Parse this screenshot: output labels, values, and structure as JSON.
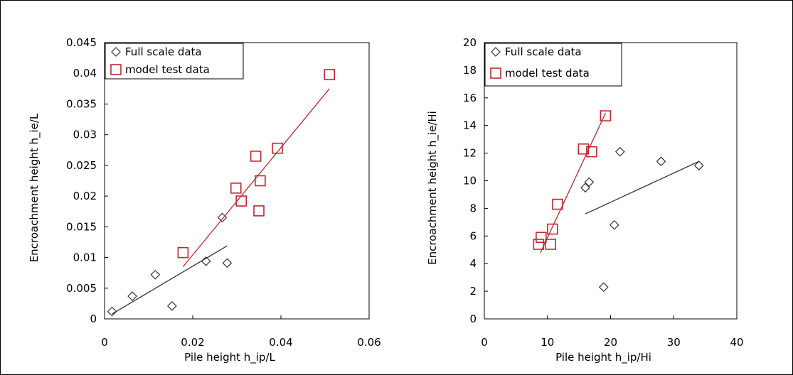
{
  "chart_data": [
    {
      "type": "scatter",
      "xlabel": "Pile height h_ip/L",
      "ylabel": "Encroachment height h_ie/L",
      "xlim": [
        0,
        0.06
      ],
      "ylim": [
        0,
        0.045
      ],
      "xticks": [
        "0",
        "0.02",
        "0.04",
        "0.06"
      ],
      "yticks": [
        "0",
        "0.005",
        "0.01",
        "0.015",
        "0.02",
        "0.025",
        "0.03",
        "0.035",
        "0.04",
        "0.045"
      ],
      "legend_position": "top-left",
      "series": [
        {
          "name": "Full scale data",
          "marker": "diamond",
          "color": "#333333",
          "points": [
            [
              0.0017,
              0.0012
            ],
            [
              0.0063,
              0.0037
            ],
            [
              0.0115,
              0.0072
            ],
            [
              0.0153,
              0.0021
            ],
            [
              0.023,
              0.0094
            ],
            [
              0.0267,
              0.0165
            ],
            [
              0.0278,
              0.0091
            ]
          ],
          "trendline": [
            [
              0.0017,
              0.0008
            ],
            [
              0.0278,
              0.0119
            ]
          ]
        },
        {
          "name": "model test data",
          "marker": "square",
          "color": "#c0282d",
          "points": [
            [
              0.0178,
              0.0108
            ],
            [
              0.0298,
              0.0213
            ],
            [
              0.031,
              0.0192
            ],
            [
              0.0343,
              0.0265
            ],
            [
              0.035,
              0.0176
            ],
            [
              0.0353,
              0.0225
            ],
            [
              0.0392,
              0.0278
            ],
            [
              0.051,
              0.0398
            ]
          ],
          "trendline": [
            [
              0.0178,
              0.0085
            ],
            [
              0.051,
              0.0375
            ]
          ]
        }
      ]
    },
    {
      "type": "scatter",
      "xlabel": "Pile height h_ip/Hi",
      "ylabel": "Encroachment height h_ie/Hi",
      "xlim": [
        0,
        40
      ],
      "ylim": [
        0,
        20
      ],
      "xticks": [
        "0",
        "10",
        "20",
        "30",
        "40"
      ],
      "yticks": [
        "0",
        "2",
        "4",
        "6",
        "8",
        "10",
        "12",
        "14",
        "16",
        "18",
        "20"
      ],
      "legend_position": "top-left",
      "series": [
        {
          "name": "Full scale data",
          "marker": "diamond",
          "color": "#333333",
          "points": [
            [
              16.0,
              9.5
            ],
            [
              16.6,
              9.9
            ],
            [
              18.9,
              2.3
            ],
            [
              20.6,
              6.8
            ],
            [
              21.5,
              12.1
            ],
            [
              28.0,
              11.4
            ],
            [
              34.0,
              11.1
            ]
          ],
          "trendline": [
            [
              16.0,
              7.6
            ],
            [
              34.0,
              11.4
            ]
          ]
        },
        {
          "name": "model test data",
          "marker": "square",
          "color": "#c0282d",
          "points": [
            [
              8.6,
              5.4
            ],
            [
              9.0,
              5.9
            ],
            [
              10.5,
              5.4
            ],
            [
              10.8,
              6.5
            ],
            [
              11.6,
              8.3
            ],
            [
              15.7,
              12.3
            ],
            [
              17.0,
              12.1
            ],
            [
              19.2,
              14.7
            ]
          ],
          "trendline": [
            [
              8.9,
              4.8
            ],
            [
              19.2,
              14.9
            ]
          ]
        }
      ]
    }
  ]
}
